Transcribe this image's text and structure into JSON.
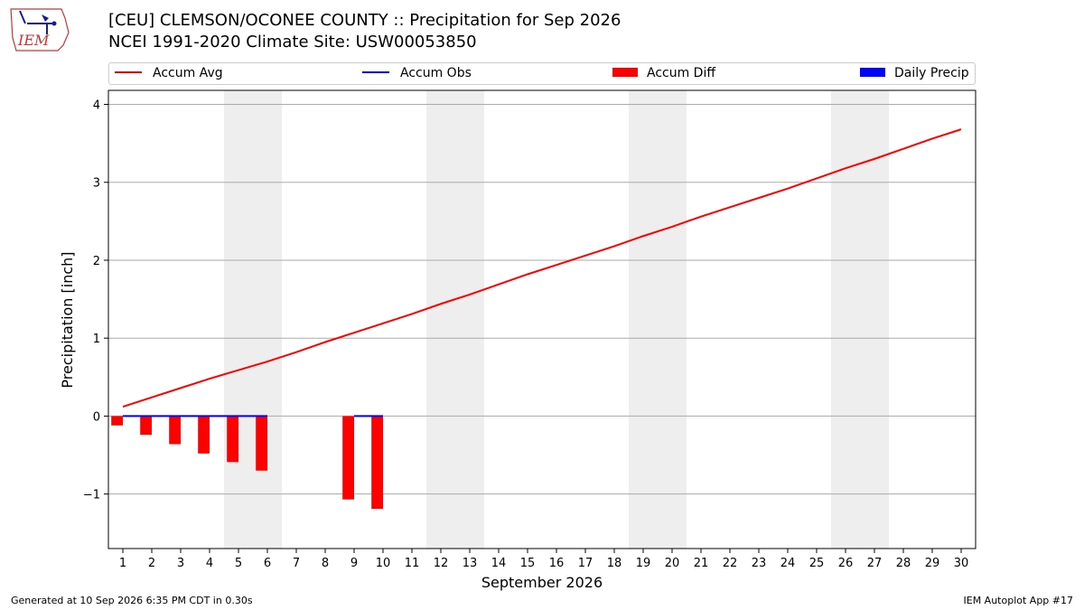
{
  "header": {
    "title_line1": "[CEU] CLEMSON/OCONEE COUNTY :: Precipitation for Sep 2026",
    "title_line2": "NCEI 1991-2020 Climate Site: USW00053850",
    "logo_text": "IEM"
  },
  "footer": {
    "generated": "Generated at 10 Sep 2026 6:35 PM CDT in 0.30s",
    "app": "IEM Autoplot App #17"
  },
  "colors": {
    "accum_avg": "#ff0000",
    "accum_obs": "#0000ff",
    "accum_diff": "#ff0000",
    "daily_precip": "#0000ff",
    "weekend_band": "#eeeeee",
    "grid": "#aaaaaa"
  },
  "chart_data": {
    "type": "bar",
    "xlabel": "September 2026",
    "ylabel": "Precipitation [inch]",
    "ylim": [
      -1.7,
      4.18
    ],
    "xlim": [
      0.5,
      30.5
    ],
    "yticks": [
      -1,
      0,
      1,
      2,
      3,
      4
    ],
    "ytick_labels": [
      "−1",
      "0",
      "1",
      "2",
      "3",
      "4"
    ],
    "xticks": [
      1,
      2,
      3,
      4,
      5,
      6,
      7,
      8,
      9,
      10,
      11,
      12,
      13,
      14,
      15,
      16,
      17,
      18,
      19,
      20,
      21,
      22,
      23,
      24,
      25,
      26,
      27,
      28,
      29,
      30
    ],
    "xtick_labels": [
      "1",
      "2",
      "3",
      "4",
      "5",
      "6",
      "7",
      "8",
      "9",
      "10",
      "11",
      "12",
      "13",
      "14",
      "15",
      "16",
      "17",
      "18",
      "19",
      "20",
      "21",
      "22",
      "23",
      "24",
      "25",
      "26",
      "27",
      "28",
      "29",
      "30"
    ],
    "grid": true,
    "legend_position": "top",
    "legend": [
      "Accum Avg",
      "Accum Obs",
      "Accum Diff",
      "Daily Precip"
    ],
    "weekend_bands": [
      [
        4.5,
        6.5
      ],
      [
        11.5,
        13.5
      ],
      [
        18.5,
        20.5
      ],
      [
        25.5,
        27.5
      ]
    ],
    "series": [
      {
        "name": "Accum Avg",
        "type": "line",
        "x": [
          1,
          2,
          3,
          4,
          5,
          6,
          7,
          8,
          9,
          10,
          11,
          12,
          13,
          14,
          15,
          16,
          17,
          18,
          19,
          20,
          21,
          22,
          23,
          24,
          25,
          26,
          27,
          28,
          29,
          30
        ],
        "values": [
          0.12,
          0.24,
          0.36,
          0.48,
          0.59,
          0.7,
          0.82,
          0.95,
          1.07,
          1.19,
          1.31,
          1.44,
          1.56,
          1.69,
          1.82,
          1.94,
          2.06,
          2.18,
          2.31,
          2.43,
          2.56,
          2.68,
          2.8,
          2.92,
          3.05,
          3.18,
          3.3,
          3.43,
          3.56,
          3.68
        ]
      },
      {
        "name": "Accum Obs",
        "type": "line",
        "x": [
          1,
          2,
          3,
          4,
          5,
          6,
          9,
          10
        ],
        "segments": [
          [
            1,
            6
          ],
          [
            9,
            10
          ]
        ],
        "values": [
          0,
          0,
          0,
          0,
          0,
          0,
          0,
          0
        ]
      },
      {
        "name": "Accum Diff",
        "type": "bar",
        "x": [
          1,
          2,
          3,
          4,
          5,
          6,
          9,
          10
        ],
        "values": [
          -0.12,
          -0.24,
          -0.36,
          -0.48,
          -0.59,
          -0.7,
          -1.07,
          -1.19
        ]
      },
      {
        "name": "Daily Precip",
        "type": "bar",
        "x": [
          1,
          2,
          3,
          4,
          5,
          6,
          9,
          10
        ],
        "values": [
          0,
          0,
          0,
          0,
          0,
          0,
          0,
          0
        ]
      }
    ]
  }
}
